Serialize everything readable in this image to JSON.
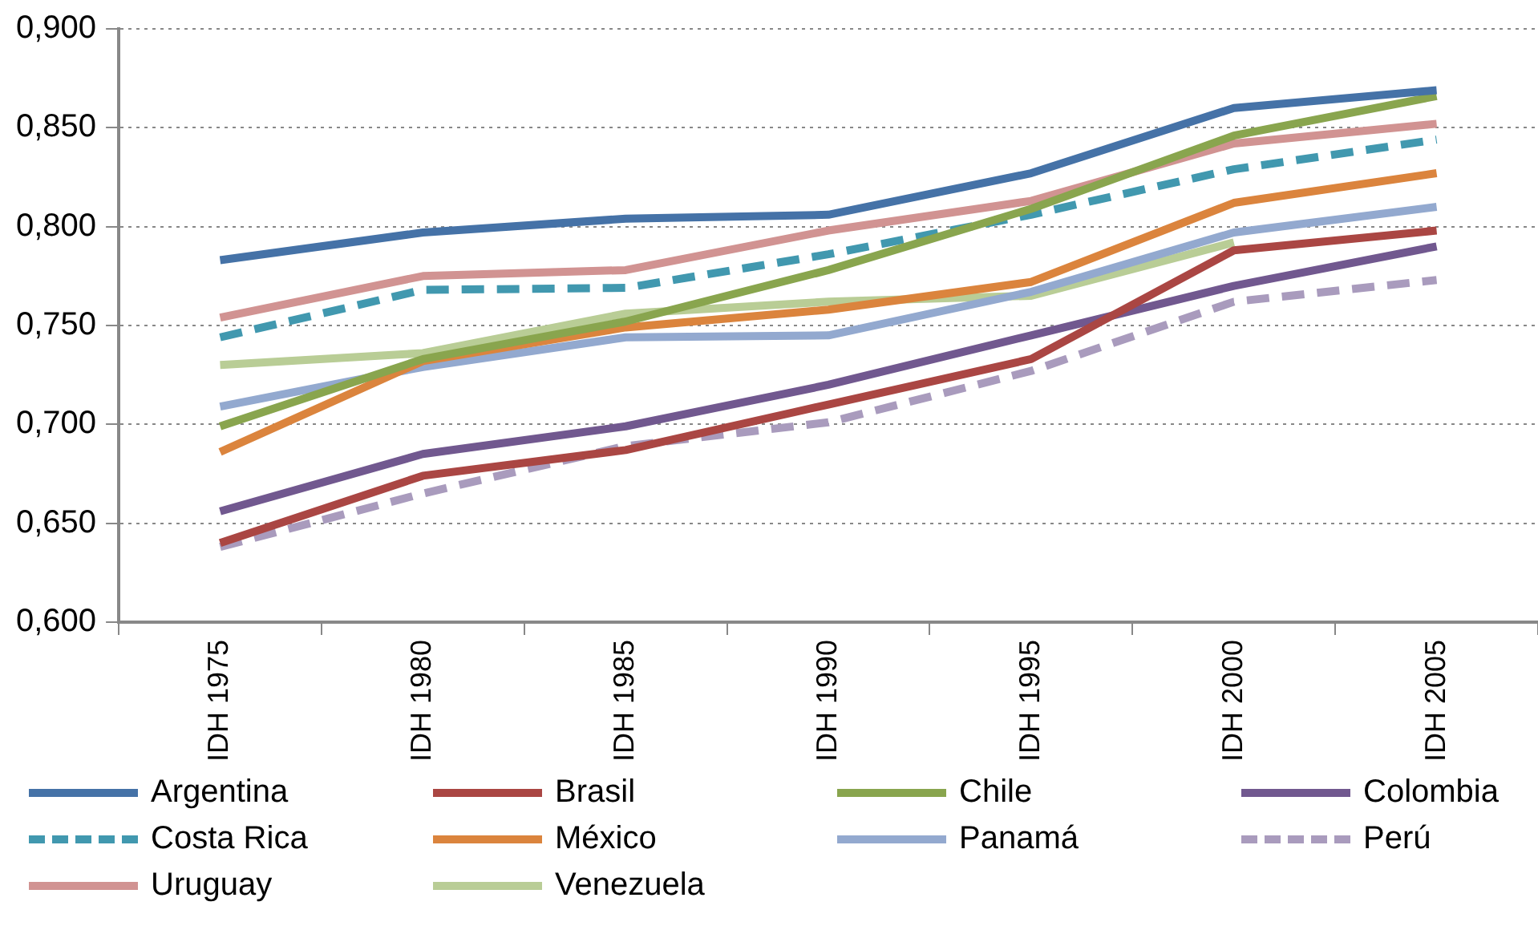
{
  "chart_data": {
    "type": "line",
    "categories": [
      "IDH 1975",
      "IDH 1980",
      "IDH 1985",
      "IDH 1990",
      "IDH 1995",
      "IDH 2000",
      "IDH 2005"
    ],
    "ylim": [
      0.6,
      0.9
    ],
    "yticks": [
      {
        "value": 0.6,
        "label": "0,600"
      },
      {
        "value": 0.65,
        "label": "0,650"
      },
      {
        "value": 0.7,
        "label": "0,700"
      },
      {
        "value": 0.75,
        "label": "0,750"
      },
      {
        "value": 0.8,
        "label": "0,800"
      },
      {
        "value": 0.85,
        "label": "0,850"
      },
      {
        "value": 0.9,
        "label": "0,900"
      }
    ],
    "grid": "y",
    "legend": "bottom",
    "marker": "none",
    "series": [
      {
        "name": "Argentina",
        "color": "#4572a7",
        "line_style": "solid",
        "values": [
          0.783,
          0.797,
          0.804,
          0.806,
          0.827,
          0.86,
          0.869
        ]
      },
      {
        "name": "Brasil",
        "color": "#aa4643",
        "line_style": "solid",
        "values": [
          0.64,
          0.674,
          0.687,
          0.71,
          0.733,
          0.788,
          0.798
        ]
      },
      {
        "name": "Chile",
        "color": "#89a54e",
        "line_style": "solid",
        "values": [
          0.699,
          0.733,
          0.752,
          0.778,
          0.809,
          0.846,
          0.866
        ]
      },
      {
        "name": "Colombia",
        "color": "#71588f",
        "line_style": "solid",
        "values": [
          0.656,
          0.685,
          0.699,
          0.72,
          0.745,
          0.77,
          0.79
        ]
      },
      {
        "name": "Costa Rica",
        "color": "#4198af",
        "line_style": "dashed",
        "values": [
          0.744,
          0.768,
          0.769,
          0.786,
          0.806,
          0.829,
          0.844
        ]
      },
      {
        "name": "México",
        "color": "#db843d",
        "line_style": "solid",
        "values": [
          0.686,
          0.732,
          0.749,
          0.758,
          0.772,
          0.812,
          0.827
        ]
      },
      {
        "name": "Panamá",
        "color": "#93a9cf",
        "line_style": "solid",
        "values": [
          0.709,
          0.729,
          0.744,
          0.745,
          0.767,
          0.797,
          0.81
        ]
      },
      {
        "name": "Perú",
        "color": "#a99bbd",
        "line_style": "dashed",
        "values": [
          0.638,
          0.665,
          0.689,
          0.701,
          0.727,
          0.762,
          0.773
        ]
      },
      {
        "name": "Uruguay",
        "color": "#d19392",
        "line_style": "solid",
        "values": [
          0.754,
          0.775,
          0.778,
          0.798,
          0.813,
          0.842,
          0.852
        ]
      },
      {
        "name": "Venezuela",
        "color": "#b9cd96",
        "line_style": "solid",
        "values": [
          0.73,
          0.736,
          0.756,
          0.762,
          0.765,
          0.792,
          null
        ]
      }
    ]
  }
}
